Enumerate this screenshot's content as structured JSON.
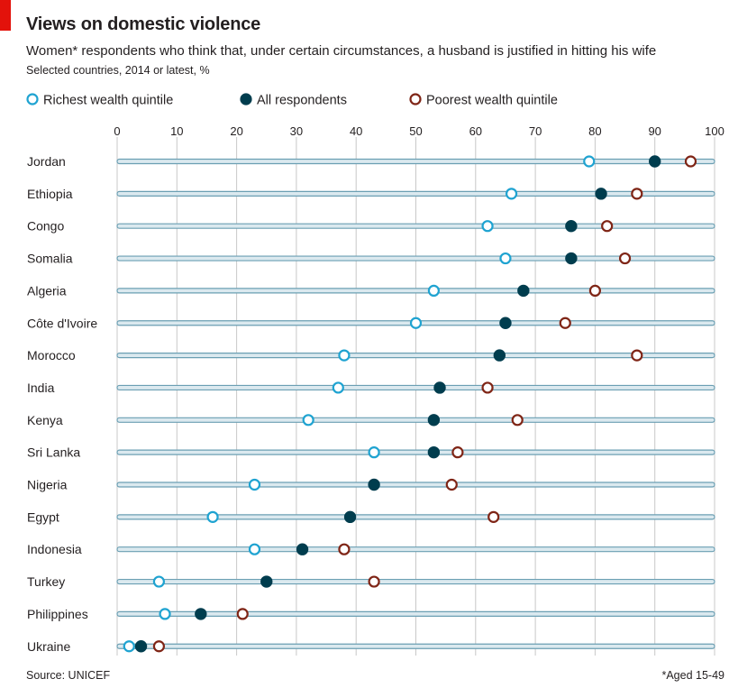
{
  "header": {
    "title": "Views on domestic violence",
    "subtitle": "Women* respondents who think that, under certain circumstances, a husband is justified in hitting his wife",
    "subtitle2": "Selected countries, 2014 or latest, %"
  },
  "footer": {
    "source": "Source: UNICEF",
    "footnote": "*Aged 15-49"
  },
  "colors": {
    "richest": "#1fa3d1",
    "all": "#003d4e",
    "poorest": "#7f2516",
    "track_fill": "#dbe9ef",
    "track_stroke": "#6b9fb3",
    "grid": "#c8c8c8",
    "accent_red": "#e3120b"
  },
  "chart_data": {
    "type": "scatter",
    "title": "Views on domestic violence",
    "xlim": [
      0,
      100
    ],
    "x_ticks": [
      0,
      10,
      20,
      30,
      40,
      50,
      60,
      70,
      80,
      90,
      100
    ],
    "grid": true,
    "legend_placement": "top",
    "series": [
      {
        "name": "Richest wealth quintile",
        "key": "richest"
      },
      {
        "name": "All respondents",
        "key": "all"
      },
      {
        "name": "Poorest wealth quintile",
        "key": "poorest"
      }
    ],
    "countries": [
      {
        "name": "Jordan",
        "richest": 79,
        "all": 90,
        "poorest": 96
      },
      {
        "name": "Ethiopia",
        "richest": 66,
        "all": 81,
        "poorest": 87
      },
      {
        "name": "Congo",
        "richest": 62,
        "all": 76,
        "poorest": 82
      },
      {
        "name": "Somalia",
        "richest": 65,
        "all": 76,
        "poorest": 85
      },
      {
        "name": "Algeria",
        "richest": 53,
        "all": 68,
        "poorest": 80
      },
      {
        "name": "Côte d'Ivoire",
        "richest": 50,
        "all": 65,
        "poorest": 75
      },
      {
        "name": "Morocco",
        "richest": 38,
        "all": 64,
        "poorest": 87
      },
      {
        "name": "India",
        "richest": 37,
        "all": 54,
        "poorest": 62
      },
      {
        "name": "Kenya",
        "richest": 32,
        "all": 53,
        "poorest": 67
      },
      {
        "name": "Sri Lanka",
        "richest": 43,
        "all": 53,
        "poorest": 57
      },
      {
        "name": "Nigeria",
        "richest": 23,
        "all": 43,
        "poorest": 56
      },
      {
        "name": "Egypt",
        "richest": 16,
        "all": 39,
        "poorest": 63
      },
      {
        "name": "Indonesia",
        "richest": 23,
        "all": 31,
        "poorest": 38
      },
      {
        "name": "Turkey",
        "richest": 7,
        "all": 25,
        "poorest": 43
      },
      {
        "name": "Philippines",
        "richest": 8,
        "all": 14,
        "poorest": 21
      },
      {
        "name": "Ukraine",
        "richest": 2,
        "all": 4,
        "poorest": 7
      }
    ]
  }
}
